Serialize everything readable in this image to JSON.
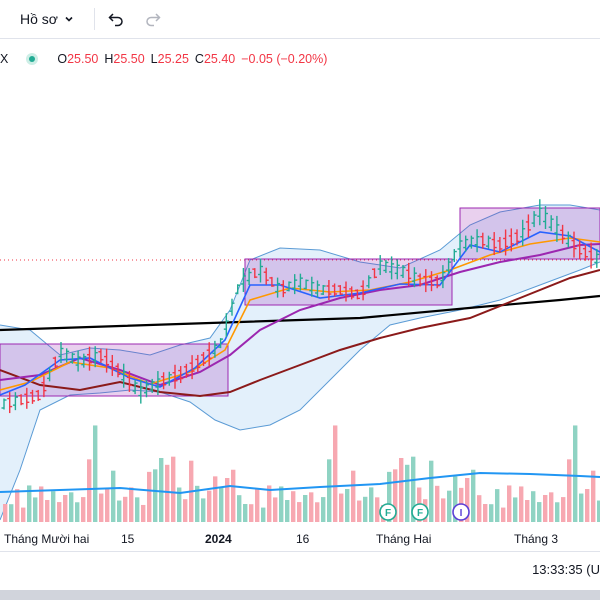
{
  "toolbar": {
    "profile_label": "Hồ sơ",
    "profile_icon": "chevron-down-icon",
    "undo_icon": "undo-icon",
    "redo_icon": "redo-icon"
  },
  "legend": {
    "symbol": "X",
    "status_color": "#22ab94",
    "open_label": "O",
    "open_value": "25.50",
    "high_label": "H",
    "high_value": "25.50",
    "low_label": "L",
    "low_value": "25.25",
    "close_label": "C",
    "close_value": "25.40",
    "change": "−0.05 (−0.20%)"
  },
  "time_axis": {
    "ticks": [
      "Tháng Mười hai",
      "15",
      "2024",
      "16",
      "Tháng Hai",
      "Tháng 3"
    ]
  },
  "events": [
    "F",
    "F",
    "I"
  ],
  "clock": "13:33:35 (U",
  "colors": {
    "up": "#22ab94",
    "down": "#f23645",
    "up_volume": "#8fd3c3",
    "down_volume": "#f7a8b1",
    "bollinger": "#5b9bd5",
    "bollinger_fill": "#e3f0fb",
    "box_fill": "rgba(156,39,176,0.22)",
    "box_border": "#9c27b0",
    "ma_fast": "#2962ff",
    "ma_orange": "#ff9800",
    "ma_purple": "#9c27b0",
    "ma_maroon": "#8b1a1a",
    "ma_black": "#000000",
    "volume_ma": "#2196f3"
  },
  "chart_data": {
    "type": "candlestick",
    "price_points": [
      19.6,
      20.2,
      20.0,
      20.8,
      21.0,
      20.9,
      21.4,
      21.2,
      21.0,
      20.7,
      20.5,
      20.4,
      20.6,
      20.9,
      21.3,
      22.2,
      23.5,
      24.1,
      24.3,
      24.0,
      24.2,
      24.1,
      23.9,
      23.8,
      24.0,
      24.3,
      24.4,
      24.2,
      24.3,
      24.6,
      24.8,
      25.0,
      25.1,
      25.2,
      25.4,
      25.3,
      25.1,
      25.3,
      25.5,
      25.4
    ],
    "volume_points": [
      3,
      4,
      3,
      5,
      4,
      4,
      3,
      2,
      3,
      2,
      3,
      4,
      3,
      4,
      5,
      9,
      7,
      6,
      5,
      4,
      5,
      4,
      4,
      3,
      4,
      5,
      6,
      8,
      6,
      7,
      5,
      4,
      6,
      5,
      4,
      3,
      4,
      5,
      4,
      3
    ],
    "events": [
      {
        "label": "F",
        "type": "dividend"
      },
      {
        "label": "F",
        "type": "dividend"
      },
      {
        "label": "I",
        "type": "split"
      }
    ]
  }
}
